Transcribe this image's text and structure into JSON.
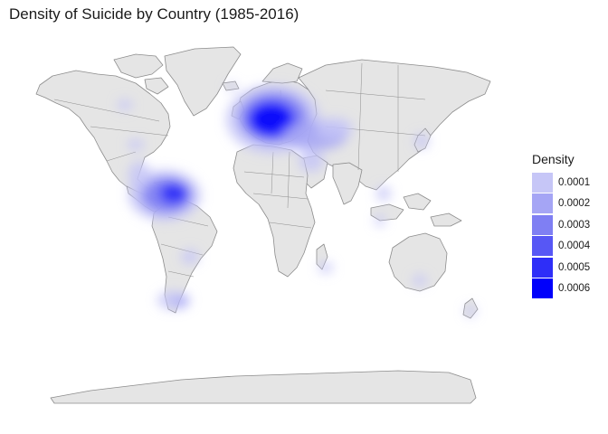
{
  "title": "Density of Suicide by Country (1985-2016)",
  "legend": {
    "title": "Density",
    "items": [
      {
        "label": "0.0001",
        "color": "#c6c6f7"
      },
      {
        "label": "0.0002",
        "color": "#a5a5f5"
      },
      {
        "label": "0.0003",
        "color": "#7f7ff3"
      },
      {
        "label": "0.0004",
        "color": "#5757f5"
      },
      {
        "label": "0.0005",
        "color": "#2e2ef8"
      },
      {
        "label": "0.0006",
        "color": "#0000fb"
      }
    ]
  },
  "colors": {
    "land": "#e5e5e5",
    "border": "#8c8c8c",
    "density": "#0000ff"
  }
}
